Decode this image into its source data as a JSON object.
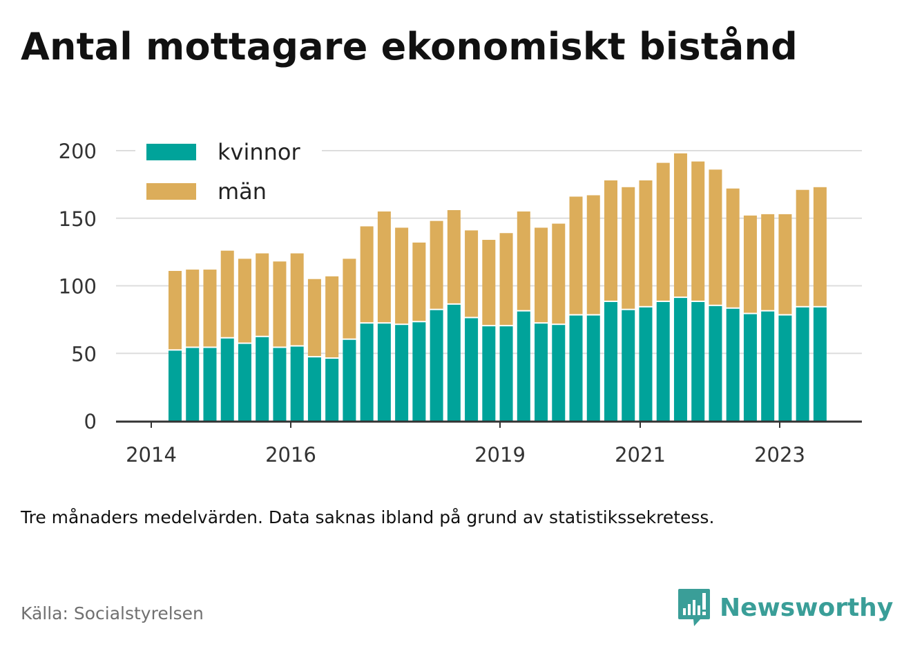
{
  "title": "Antal mottagare ekonomiskt bistånd",
  "note": "Tre månaders medelvärden. Data saknas ibland på grund av statistikssekretess.",
  "source": "Källa: Socialstyrelsen",
  "brand": "Newsworthy",
  "colors": {
    "kvinnor": "#00a39a",
    "man": "#dcad5a",
    "grid": "#dddddd",
    "axis": "#333333",
    "text": "#333333",
    "brand": "#3a9e98"
  },
  "chart_data": {
    "type": "bar",
    "stacked": true,
    "x_tick_labels": [
      "2014",
      "2016",
      "2019",
      "2021",
      "2023"
    ],
    "y_ticks": [
      0,
      50,
      100,
      150,
      200
    ],
    "ylim": [
      0,
      200
    ],
    "grid": true,
    "legend_position": "top-left",
    "series": [
      {
        "name": "kvinnor",
        "values": [
          52,
          54,
          54,
          61,
          57,
          62,
          54,
          55,
          47,
          46,
          60,
          72,
          72,
          71,
          73,
          82,
          86,
          76,
          70,
          70,
          81,
          72,
          71,
          78,
          78,
          88,
          82,
          84,
          88,
          91,
          88,
          85,
          83,
          79,
          81,
          78,
          84,
          84
        ]
      },
      {
        "name": "män",
        "values": [
          59,
          58,
          58,
          65,
          63,
          62,
          64,
          69,
          58,
          61,
          60,
          72,
          83,
          72,
          59,
          66,
          70,
          65,
          64,
          69,
          74,
          71,
          75,
          88,
          89,
          90,
          91,
          94,
          103,
          107,
          104,
          101,
          89,
          73,
          72,
          75,
          87,
          89
        ]
      }
    ]
  }
}
